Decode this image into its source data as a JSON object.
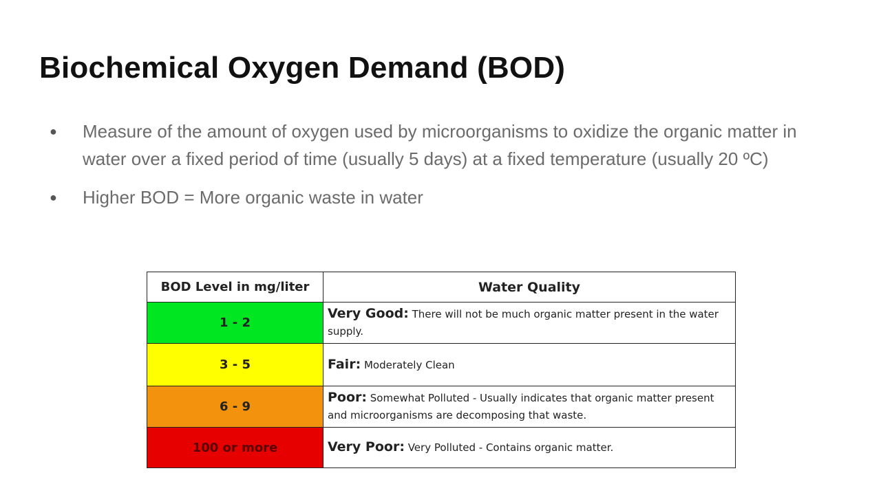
{
  "title": "Biochemical Oxygen Demand (BOD)",
  "bullets": [
    "Measure of the amount of oxygen used by microorganisms to oxidize the organic matter in water over a fixed period of time (usually 5 days) at a fixed temperature (usually 20 ºC)",
    "Higher BOD = More organic waste in water"
  ],
  "table": {
    "headers": [
      "BOD Level in mg/liter",
      "Water Quality"
    ],
    "rows": [
      {
        "level": "1 - 2",
        "label": "Very Good:",
        "text": "There will not be much organic matter present in the water supply."
      },
      {
        "level": "3 - 5",
        "label": "Fair:",
        "text": "Moderately Clean"
      },
      {
        "level": "6 - 9",
        "label": "Poor:",
        "text": "Somewhat Polluted - Usually indicates that organic matter present and microorganisms are decomposing that waste."
      },
      {
        "level": "100 or more",
        "label": "Very Poor:",
        "text": "Very Polluted - Contains organic matter."
      }
    ]
  }
}
